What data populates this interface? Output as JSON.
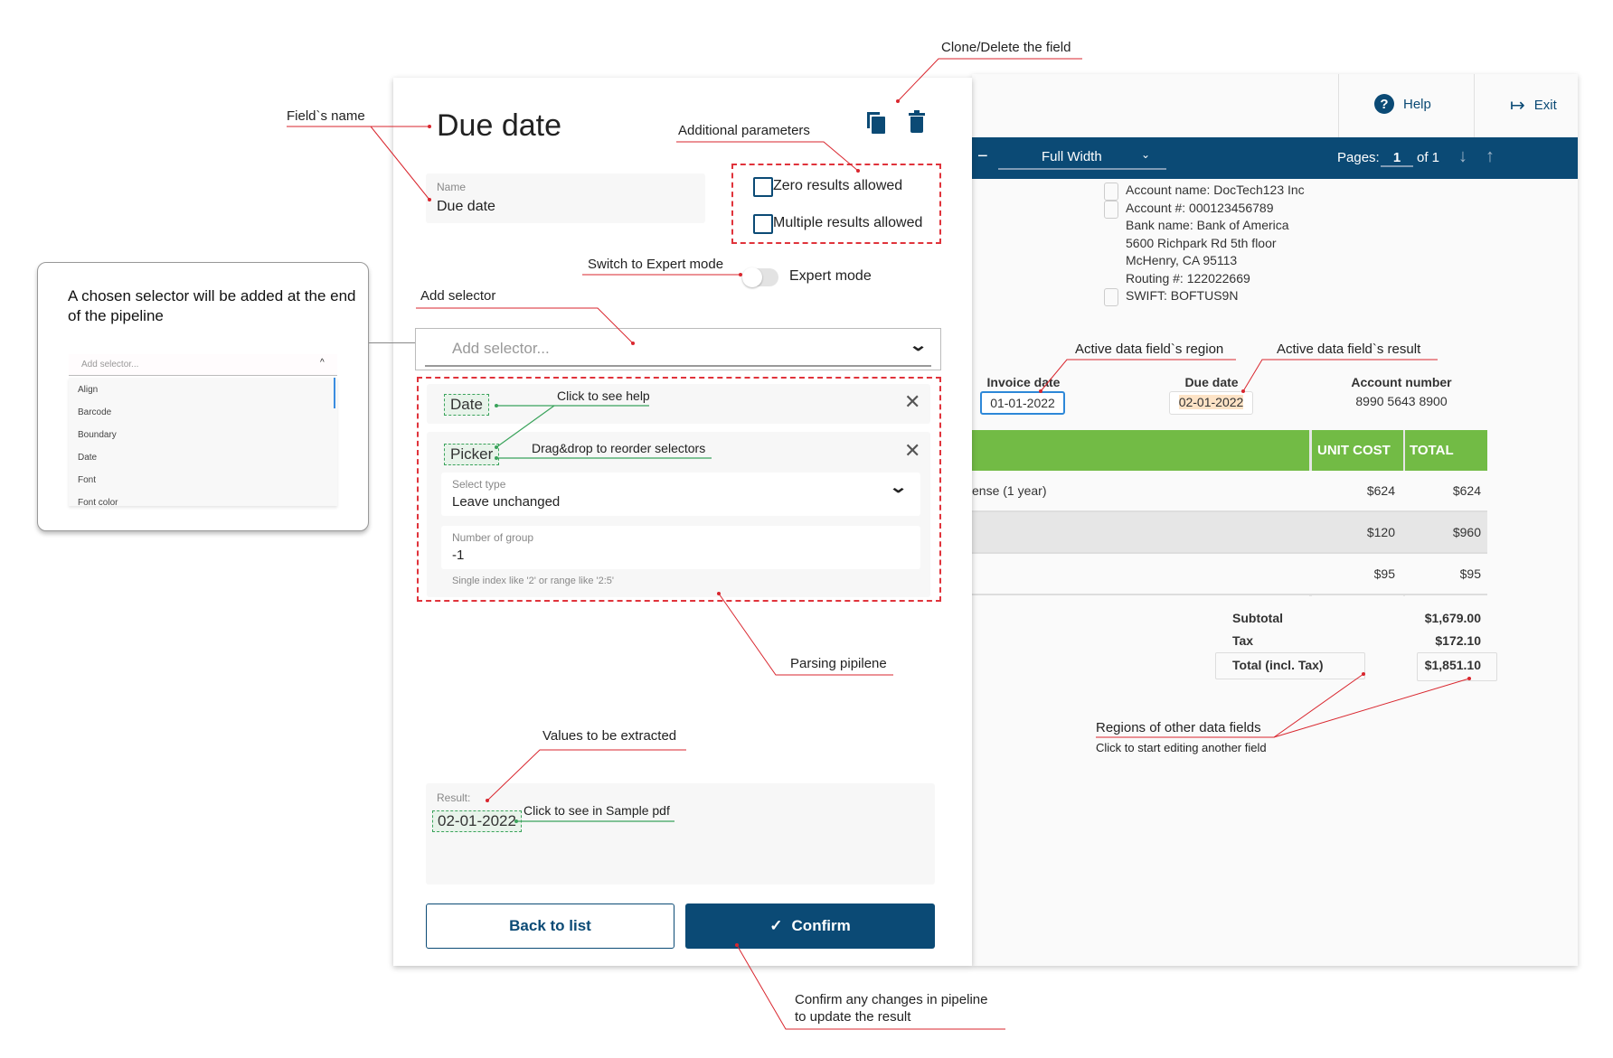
{
  "editor": {
    "title": "Due date",
    "name_label": "Name",
    "name_value": "Due date",
    "zero_results": "Zero results allowed",
    "multiple_results": "Multiple results allowed",
    "expert_mode": "Expert mode",
    "expert_mode_on": false,
    "add_selector_placeholder": "Add selector...",
    "selectors": [
      {
        "name": "Date"
      },
      {
        "name": "Picker",
        "select_type_label": "Select type",
        "select_type_value": "Leave unchanged",
        "group_label": "Number of group",
        "group_value": "-1",
        "group_hint": "Single index like '2' or range like '2:5'"
      }
    ],
    "result_label": "Result:",
    "result_value": "02-01-2022",
    "back_button": "Back to list",
    "confirm_button": "Confirm"
  },
  "viewer": {
    "help": "Help",
    "exit": "Exit",
    "zoom_select": "Full Width",
    "pages_label": "Pages:",
    "page_value": "1",
    "page_total": "of 1",
    "bank_lines": [
      "Account name: DocTech123 Inc",
      "Account #: 000123456789",
      "Bank name: Bank of America",
      "5600 Richpark Rd 5th floor",
      "McHenry, CA 95113",
      "Routing #: 122022669",
      "SWIFT: BOFTUS9N"
    ],
    "invoice_date_label": "Invoice date",
    "invoice_date_value": "01-01-2022",
    "due_date_label": "Due date",
    "due_date_value": "02-01-2022",
    "account_number_label": "Account number",
    "account_number_value": "8990 5643 8900",
    "table": {
      "headers": [
        "UNIT COST",
        "TOTAL"
      ],
      "rows": [
        {
          "desc": "ense (1 year)",
          "unit": "$624",
          "total": "$624"
        },
        {
          "desc": "",
          "unit": "$120",
          "total": "$960"
        },
        {
          "desc": "",
          "unit": "$95",
          "total": "$95"
        }
      ]
    },
    "subtotal_label": "Subtotal",
    "subtotal_value": "$1,679.00",
    "tax_label": "Tax",
    "tax_value": "$172.10",
    "total_label": "Total (incl. Tax)",
    "total_value": "$1,851.10"
  },
  "callout": {
    "text": "A chosen selector will be added at the end of the pipeline",
    "placeholder": "Add selector...",
    "options": [
      "Align",
      "Barcode",
      "Boundary",
      "Date",
      "Font",
      "Font color"
    ]
  },
  "annotations": {
    "field_name": "Field`s name",
    "clone_delete": "Clone/Delete the field",
    "additional_params": "Additional parameters",
    "expert_switch": "Switch to Expert mode",
    "add_selector": "Add selector",
    "click_help": "Click to see help",
    "drag_drop": "Drag&drop to reorder selectors",
    "parsing_pipeline": "Parsing pipilene",
    "values_extracted": "Values to be extracted",
    "click_sample": "Click to see in Sample pdf",
    "confirm_changes_1": "Confirm any changes in pipeline",
    "confirm_changes_2": "to update the result",
    "active_region": "Active data field`s region",
    "active_result": "Active data field`s result",
    "other_regions": "Regions of other data fields",
    "other_regions_sub": "Click to start editing another field"
  },
  "colors": {
    "primary": "#0b4a75",
    "table_header": "#72bb45",
    "annotation_line": "#d9262e",
    "help_line": "#3aa35b",
    "result_highlight": "#fde3c6"
  }
}
